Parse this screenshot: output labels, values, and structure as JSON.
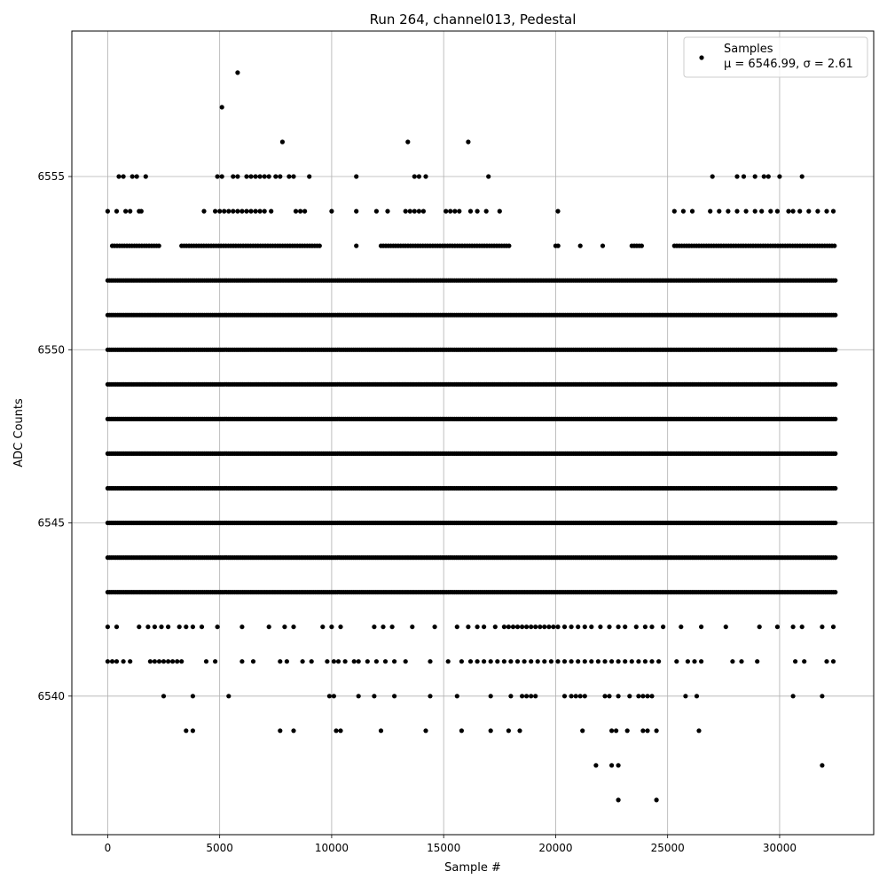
{
  "chart_data": {
    "type": "scatter",
    "title": "Run 264, channel013, Pedestal",
    "xlabel": "Sample #",
    "ylabel": "ADC Counts",
    "xlim": [
      -1600,
      34200
    ],
    "ylim": [
      6536.0,
      6559.2
    ],
    "xticks": [
      0,
      5000,
      10000,
      15000,
      20000,
      25000,
      30000
    ],
    "yticks": [
      6540,
      6545,
      6550,
      6555
    ],
    "grid": true,
    "legend_position": "top-right",
    "legend": {
      "series_name": "Samples",
      "stats_line": "μ = 6546.99, σ = 2.61"
    },
    "marker_color": "#000000",
    "x_max_sample": 32500,
    "dense_levels": [
      6543,
      6544,
      6545,
      6546,
      6547,
      6548,
      6549,
      6550,
      6551,
      6552
    ],
    "outliers": [
      {
        "x": 5800,
        "y": 6558
      },
      {
        "x": 5100,
        "y": 6557
      },
      {
        "x": 7800,
        "y": 6556
      },
      {
        "x": 13400,
        "y": 6556
      },
      {
        "x": 16100,
        "y": 6556
      },
      {
        "x": 22800,
        "y": 6537
      },
      {
        "x": 24500,
        "y": 6537
      },
      {
        "x": 21800,
        "y": 6538
      },
      {
        "x": 22500,
        "y": 6538
      },
      {
        "x": 22800,
        "y": 6538
      },
      {
        "x": 31900,
        "y": 6538
      }
    ],
    "sparse_levels": [
      {
        "y": 6555,
        "x": [
          500,
          700,
          1100,
          1300,
          1700,
          4900,
          5100,
          5600,
          5800,
          6200,
          6400,
          6600,
          6800,
          7000,
          7200,
          7500,
          7700,
          8100,
          8300,
          9000,
          11100,
          13700,
          13900,
          14200,
          17000,
          27000,
          28100,
          28400,
          28900,
          29300,
          29500,
          30000,
          31000
        ]
      },
      {
        "y": 6554,
        "x": [
          0,
          400,
          800,
          1000,
          1400,
          1500,
          4300,
          4800,
          5000,
          5200,
          5400,
          5600,
          5800,
          6000,
          6200,
          6400,
          6600,
          6800,
          7000,
          7300,
          8400,
          8600,
          8800,
          10000,
          11100,
          12000,
          12500,
          13300,
          13500,
          13700,
          13900,
          14100,
          15100,
          15300,
          15500,
          15700,
          16200,
          16500,
          16900,
          17500,
          20100,
          25300,
          25700,
          26100,
          26900,
          27300,
          27700,
          28100,
          28500,
          28900,
          29200,
          29600,
          29900,
          30400,
          30600,
          30900,
          31300,
          31700,
          32100,
          32400
        ]
      },
      {
        "y": 6542,
        "x": [
          0,
          400,
          1400,
          1800,
          2100,
          2400,
          2700,
          3200,
          3500,
          3800,
          4200,
          4900,
          6000,
          7200,
          7900,
          8300,
          9600,
          10000,
          10400,
          11900,
          12300,
          12700,
          13600,
          14600,
          15600,
          16100,
          16500,
          16800,
          17300,
          17700,
          17900,
          18100,
          18300,
          18500,
          18700,
          18900,
          19100,
          19300,
          19500,
          19700,
          19900,
          20100,
          20400,
          20700,
          21000,
          21300,
          21600,
          22000,
          22400,
          22800,
          23100,
          23600,
          24000,
          24300,
          24800,
          25600,
          26500,
          27600,
          29100,
          29900,
          30600,
          31000,
          31900,
          32400
        ]
      },
      {
        "y": 6541,
        "x": [
          0,
          200,
          400,
          700,
          1000,
          1900,
          2100,
          2300,
          2500,
          2700,
          2900,
          3100,
          3300,
          4400,
          4800,
          6000,
          6500,
          7700,
          8000,
          8700,
          9100,
          9800,
          10100,
          10300,
          10600,
          11000,
          11200,
          11600,
          12000,
          12400,
          12800,
          13300,
          14400,
          15200,
          15800,
          16200,
          16500,
          16800,
          17100,
          17400,
          17700,
          18000,
          18300,
          18600,
          18900,
          19200,
          19500,
          19800,
          20100,
          20400,
          20700,
          21000,
          21300,
          21600,
          21900,
          22200,
          22500,
          22800,
          23100,
          23400,
          23700,
          24000,
          24300,
          24600,
          25400,
          25900,
          26200,
          26500,
          27900,
          28300,
          29000,
          30700,
          31100,
          32100,
          32400
        ]
      },
      {
        "y": 6540,
        "x": [
          2500,
          3800,
          5400,
          9900,
          10100,
          11200,
          11900,
          12800,
          14400,
          15600,
          17100,
          18000,
          18500,
          18700,
          18900,
          19100,
          20400,
          20700,
          20900,
          21100,
          21300,
          22200,
          22400,
          22800,
          23300,
          23700,
          23900,
          24100,
          24300,
          25800,
          26300,
          30600,
          31900
        ]
      },
      {
        "y": 6539,
        "x": [
          3500,
          3800,
          7700,
          8300,
          10200,
          10400,
          12200,
          14200,
          15800,
          17100,
          17900,
          18400,
          21200,
          22500,
          22700,
          23200,
          23900,
          24100,
          24500,
          26400
        ]
      }
    ],
    "medium_levels": [
      {
        "y": 6553,
        "x_ranges": [
          [
            200,
            2300
          ],
          [
            3300,
            9500
          ],
          [
            11100,
            11200
          ],
          [
            12200,
            18000
          ],
          [
            20000,
            20200
          ],
          [
            21100,
            21200
          ],
          [
            22100,
            22200
          ],
          [
            23400,
            23900
          ],
          [
            25300,
            32500
          ]
        ]
      }
    ]
  }
}
